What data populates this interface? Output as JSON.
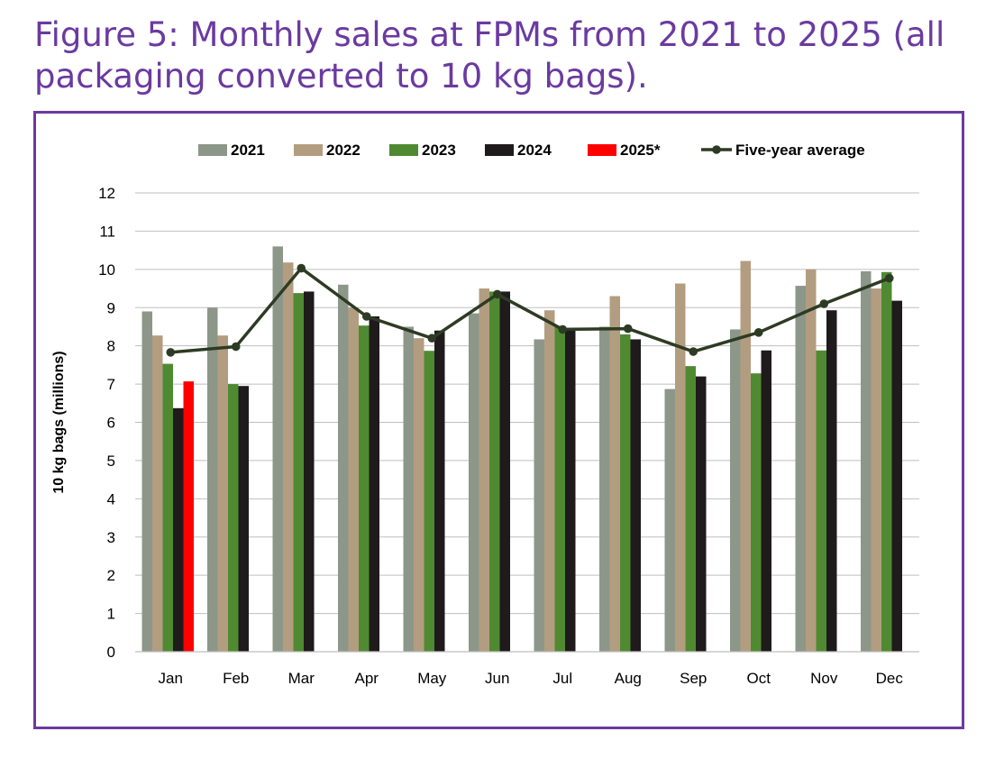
{
  "figure": {
    "title_line1": "Figure 5: Monthly sales at FPMs from 2021 to 2025 (all",
    "title_line2": "packaging converted to 10 kg bags)."
  },
  "colors": {
    "title": "#6b3aa0",
    "frame": "#6b3aa0",
    "s2021": "#8c978a",
    "s2022": "#b39d80",
    "s2023": "#4f8a32",
    "s2024": "#1f1a1c",
    "s2025": "#ff0000",
    "average": "#2e3b24",
    "grid": "#bfbfbf",
    "axis": "#bfbfbf"
  },
  "chart_data": {
    "type": "bar",
    "title": "Figure 5: Monthly sales at FPMs from 2021 to 2025 (all packaging converted to 10 kg bags).",
    "xlabel": "",
    "ylabel": "10 kg bags (millions)",
    "ylim": [
      0,
      12
    ],
    "yticks": [
      "0",
      "1",
      "2",
      "3",
      "4",
      "5",
      "6",
      "7",
      "8",
      "9",
      "10",
      "11",
      "12"
    ],
    "grid": true,
    "legend_position": "top",
    "categories": [
      "Jan",
      "Feb",
      "Mar",
      "Apr",
      "May",
      "Jun",
      "Jul",
      "Aug",
      "Sep",
      "Oct",
      "Nov",
      "Dec"
    ],
    "series": [
      {
        "name": "2021",
        "kind": "bar",
        "color": "#8c978a",
        "values": [
          8.9,
          9.0,
          10.6,
          9.6,
          8.5,
          8.85,
          8.17,
          8.5,
          6.87,
          8.43,
          9.57,
          9.95
        ]
      },
      {
        "name": "2022",
        "kind": "bar",
        "color": "#b39d80",
        "values": [
          8.27,
          8.27,
          10.18,
          9.0,
          8.2,
          9.5,
          8.93,
          9.3,
          9.63,
          10.22,
          10.0,
          9.5
        ]
      },
      {
        "name": "2023",
        "kind": "bar",
        "color": "#4f8a32",
        "values": [
          7.53,
          7.0,
          9.38,
          8.53,
          7.87,
          9.42,
          8.5,
          8.3,
          7.47,
          7.28,
          7.88,
          9.93
        ]
      },
      {
        "name": "2024",
        "kind": "bar",
        "color": "#1f1a1c",
        "values": [
          6.37,
          6.95,
          9.42,
          8.77,
          8.4,
          9.42,
          8.4,
          8.17,
          7.2,
          7.88,
          8.93,
          9.18
        ]
      },
      {
        "name": "2025*",
        "kind": "bar",
        "color": "#ff0000",
        "values": [
          7.07,
          null,
          null,
          null,
          null,
          null,
          null,
          null,
          null,
          null,
          null,
          null
        ]
      },
      {
        "name": "Five-year average",
        "kind": "line",
        "color": "#2e3b24",
        "values": [
          7.83,
          7.98,
          10.03,
          8.77,
          8.2,
          9.35,
          8.43,
          8.45,
          7.85,
          8.35,
          9.1,
          9.77
        ]
      }
    ]
  }
}
